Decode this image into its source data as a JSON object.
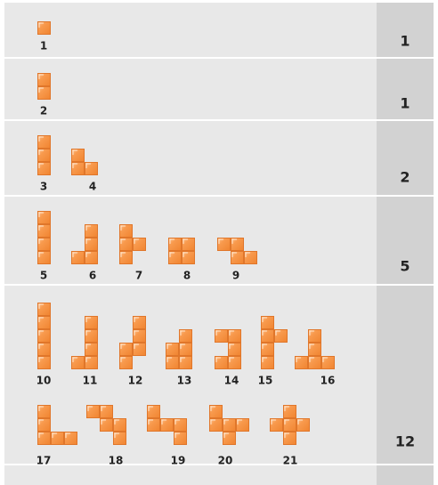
{
  "rows": [
    {
      "shapes": [
        1
      ],
      "count": 1
    },
    {
      "shapes": [
        2
      ],
      "count": 1
    },
    {
      "shapes": [
        3,
        4
      ],
      "count": 2
    },
    {
      "shapes": [
        5,
        6,
        7,
        8,
        9
      ],
      "count": 5
    },
    {
      "shapes": [
        10,
        11,
        12,
        13,
        14,
        15,
        16,
        17,
        18,
        19,
        20,
        21
      ],
      "count": 12
    }
  ]
}
